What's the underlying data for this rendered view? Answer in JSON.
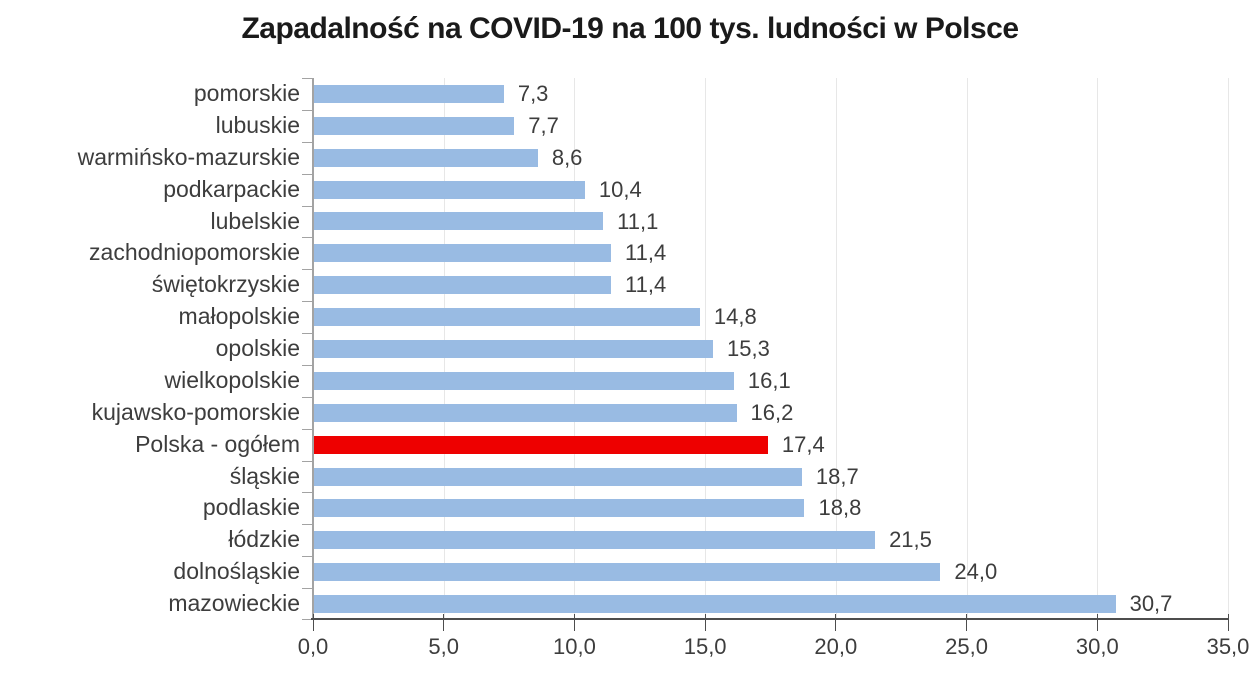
{
  "chart_data": {
    "type": "bar",
    "orientation": "horizontal",
    "title": "Zapadalność na COVID-19 na 100 tys. ludności w Polsce",
    "categories": [
      "pomorskie",
      "lubuskie",
      "warmińsko-mazurskie",
      "podkarpackie",
      "lubelskie",
      "zachodniopomorskie",
      "świętokrzyskie",
      "małopolskie",
      "opolskie",
      "wielkopolskie",
      "kujawsko-pomorskie",
      "Polska - ogółem",
      "śląskie",
      "podlaskie",
      "łódzkie",
      "dolnośląskie",
      "mazowieckie"
    ],
    "values": [
      7.3,
      7.7,
      8.6,
      10.4,
      11.1,
      11.4,
      11.4,
      14.8,
      15.3,
      16.1,
      16.2,
      17.4,
      18.7,
      18.8,
      21.5,
      24.0,
      30.7
    ],
    "value_labels": [
      "7,3",
      "7,7",
      "8,6",
      "10,4",
      "11,1",
      "11,4",
      "11,4",
      "14,8",
      "15,3",
      "16,1",
      "16,2",
      "17,4",
      "18,7",
      "18,8",
      "21,5",
      "24,0",
      "30,7"
    ],
    "highlight_category": "Polska - ogółem",
    "highlight_index": 11,
    "bar_color": "#99BBE3",
    "highlight_color": "#EE0000",
    "xlabel": "",
    "ylabel": "",
    "xlim": [
      0,
      35
    ],
    "x_ticks": [
      0,
      5,
      10,
      15,
      20,
      25,
      30,
      35
    ],
    "x_tick_labels": [
      "0,0",
      "5,0",
      "10,0",
      "15,0",
      "20,0",
      "25,0",
      "30,0",
      "35,0"
    ],
    "grid": "vertical-gridlines",
    "legend": "none"
  }
}
